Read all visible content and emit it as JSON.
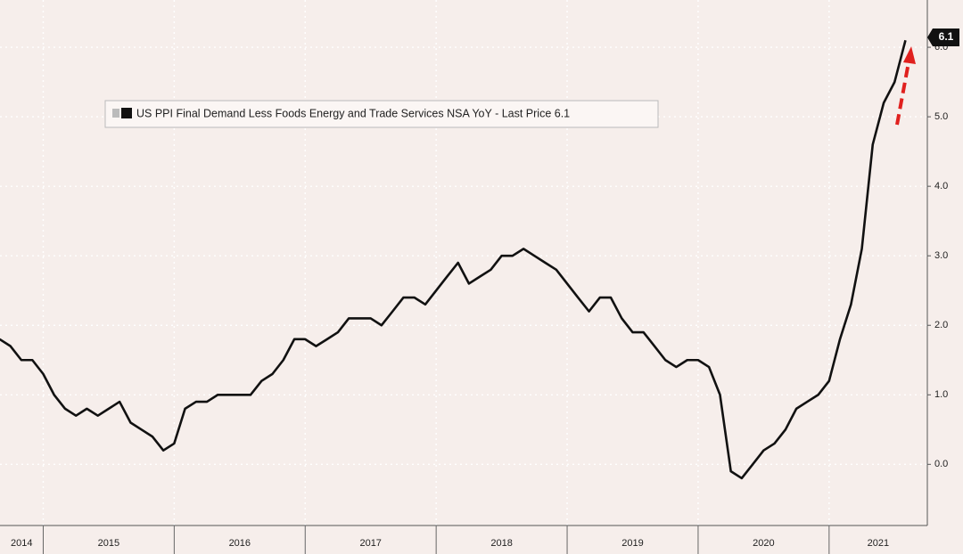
{
  "chart_data": {
    "type": "line",
    "x": [
      2014.667,
      2014.75,
      2014.833,
      2014.917,
      2015.0,
      2015.083,
      2015.167,
      2015.25,
      2015.333,
      2015.417,
      2015.5,
      2015.583,
      2015.667,
      2015.75,
      2015.833,
      2015.917,
      2016.0,
      2016.083,
      2016.167,
      2016.25,
      2016.333,
      2016.417,
      2016.5,
      2016.583,
      2016.667,
      2016.75,
      2016.833,
      2016.917,
      2017.0,
      2017.083,
      2017.167,
      2017.25,
      2017.333,
      2017.417,
      2017.5,
      2017.583,
      2017.667,
      2017.75,
      2017.833,
      2017.917,
      2018.0,
      2018.083,
      2018.167,
      2018.25,
      2018.333,
      2018.417,
      2018.5,
      2018.583,
      2018.667,
      2018.75,
      2018.833,
      2018.917,
      2019.0,
      2019.083,
      2019.167,
      2019.25,
      2019.333,
      2019.417,
      2019.5,
      2019.583,
      2019.667,
      2019.75,
      2019.833,
      2019.917,
      2020.0,
      2020.083,
      2020.167,
      2020.25,
      2020.333,
      2020.417,
      2020.5,
      2020.583,
      2020.667,
      2020.75,
      2020.833,
      2020.917,
      2021.0,
      2021.083,
      2021.167,
      2021.25,
      2021.333,
      2021.417,
      2021.5,
      2021.583
    ],
    "series": [
      {
        "name": "US PPI Final Demand Less Foods Energy and Trade Services NSA YoY - Last Price 6.1",
        "color": "#111111",
        "values": [
          1.8,
          1.7,
          1.5,
          1.5,
          1.3,
          1.0,
          0.8,
          0.7,
          0.8,
          0.7,
          0.8,
          0.9,
          0.6,
          0.5,
          0.4,
          0.2,
          0.3,
          0.8,
          0.9,
          0.9,
          1.0,
          1.0,
          1.0,
          1.0,
          1.2,
          1.3,
          1.5,
          1.8,
          1.8,
          1.7,
          1.8,
          1.9,
          2.1,
          2.1,
          2.1,
          2.0,
          2.2,
          2.4,
          2.4,
          2.3,
          2.5,
          2.7,
          2.9,
          2.6,
          2.7,
          2.8,
          3.0,
          3.0,
          3.1,
          3.0,
          2.9,
          2.8,
          2.6,
          2.4,
          2.2,
          2.4,
          2.4,
          2.1,
          1.9,
          1.9,
          1.7,
          1.5,
          1.4,
          1.5,
          1.5,
          1.4,
          1.0,
          -0.1,
          -0.2,
          0.0,
          0.2,
          0.3,
          0.5,
          0.8,
          0.9,
          1.0,
          1.2,
          1.8,
          2.3,
          3.1,
          4.6,
          5.2,
          5.5,
          6.1
        ]
      }
    ],
    "xlim": [
      2014.67,
      2021.75
    ],
    "xticks": [
      {
        "value": 2014,
        "label": "2014"
      },
      {
        "value": 2015,
        "label": "2015"
      },
      {
        "value": 2016,
        "label": "2016"
      },
      {
        "value": 2017,
        "label": "2017"
      },
      {
        "value": 2018,
        "label": "2018"
      },
      {
        "value": 2019,
        "label": "2019"
      },
      {
        "value": 2020,
        "label": "2020"
      },
      {
        "value": 2021,
        "label": "2021"
      }
    ],
    "ylim": [
      -0.88,
      6.68
    ],
    "yticks": [
      {
        "value": 0,
        "label": "0.0"
      },
      {
        "value": 1,
        "label": "1.0"
      },
      {
        "value": 2,
        "label": "2.0"
      },
      {
        "value": 3,
        "label": "3.0"
      },
      {
        "value": 4,
        "label": "4.0"
      },
      {
        "value": 5,
        "label": "5.0"
      },
      {
        "value": 6,
        "label": "6.0"
      }
    ],
    "grid": true,
    "legend": "top-left"
  }
}
